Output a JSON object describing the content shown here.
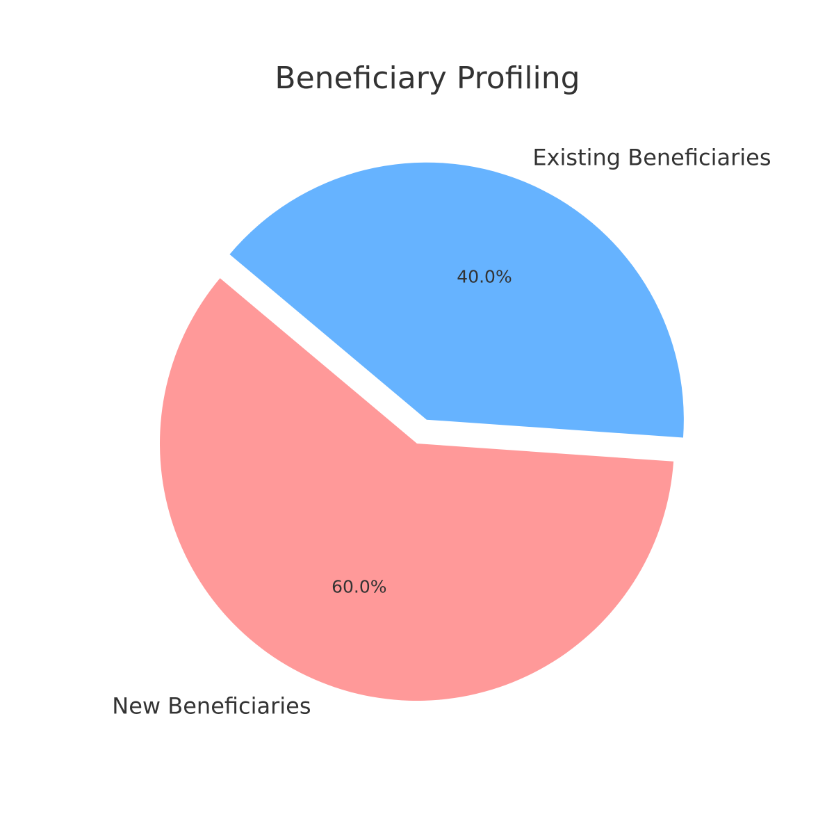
{
  "chart_data": {
    "type": "pie",
    "title": "Beneficiary Profiling",
    "categories": [
      "New Beneficiaries",
      "Existing Beneficiaries"
    ],
    "values": [
      60.0,
      40.0
    ],
    "percent_labels": [
      "60.0%",
      "40.0%"
    ],
    "colors": [
      "#ff9999",
      "#66b3ff"
    ],
    "exploded": [
      false,
      true
    ],
    "start_angle_deg": 140,
    "legend": "none"
  }
}
